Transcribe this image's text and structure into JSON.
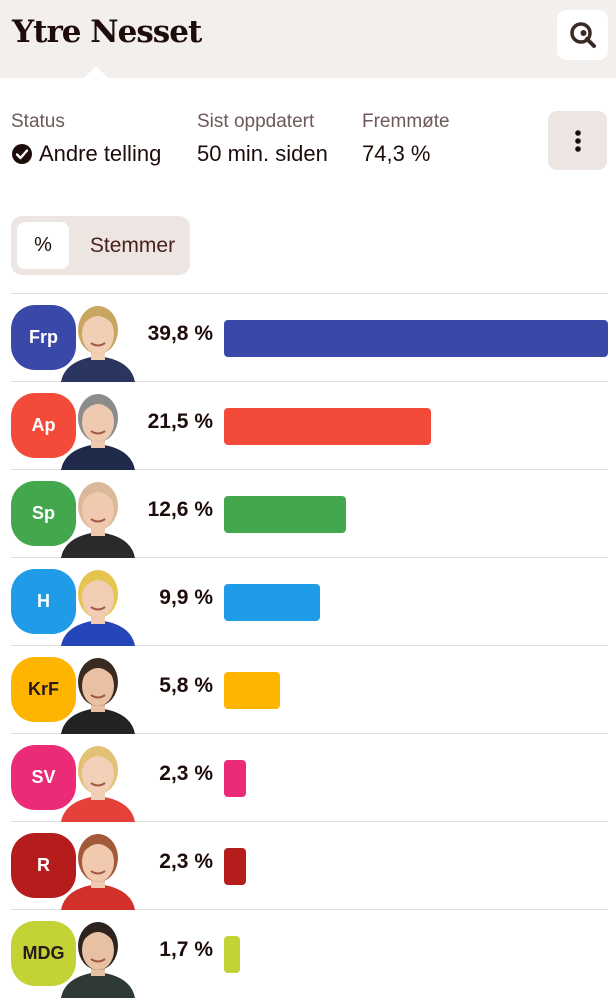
{
  "header": {
    "title": "Ytre Nesset",
    "search_icon": "search-icon"
  },
  "stats": {
    "status_label": "Status",
    "status_value": "Andre telling",
    "updated_label": "Sist oppdatert",
    "updated_value": "50 min. siden",
    "turnout_label": "Fremmøte",
    "turnout_value": "74,3 %"
  },
  "menu": {
    "icon": "more-vertical-icon"
  },
  "toggle": {
    "percent_label": "%",
    "votes_label": "Stemmer"
  },
  "parties": [
    {
      "abbr": "Frp",
      "percent_label": "39,8 %",
      "value": 39.8,
      "color": "#3a49a8",
      "text_color": "#ffffff",
      "skin": "#f1cfb4",
      "hair": "#c8a560",
      "suit": "#2a3560"
    },
    {
      "abbr": "Ap",
      "percent_label": "21,5 %",
      "value": 21.5,
      "color": "#f34a3a",
      "text_color": "#ffffff",
      "skin": "#efcab0",
      "hair": "#8c8c8c",
      "suit": "#1f2a4a"
    },
    {
      "abbr": "Sp",
      "percent_label": "12,6 %",
      "value": 12.6,
      "color": "#43a84d",
      "text_color": "#ffffff",
      "skin": "#f0c9ae",
      "hair": "#d9b99a",
      "suit": "#2a2a2a"
    },
    {
      "abbr": "H",
      "percent_label": "9,9 %",
      "value": 9.9,
      "color": "#1f9be8",
      "text_color": "#ffffff",
      "skin": "#f1cdb3",
      "hair": "#e5c54f",
      "suit": "#2446b8"
    },
    {
      "abbr": "KrF",
      "percent_label": "5,8 %",
      "value": 5.8,
      "color": "#ffb400",
      "text_color": "#2a1a18",
      "skin": "#e9c1a2",
      "hair": "#3a2a22",
      "suit": "#232323"
    },
    {
      "abbr": "SV",
      "percent_label": "2,3 %",
      "value": 2.3,
      "color": "#eb2a78",
      "text_color": "#ffffff",
      "skin": "#f2d0b7",
      "hair": "#e2c074",
      "suit": "#e5413a"
    },
    {
      "abbr": "R",
      "percent_label": "2,3 %",
      "value": 2.3,
      "color": "#b51d1d",
      "text_color": "#ffffff",
      "skin": "#f0c9ae",
      "hair": "#a35a3a",
      "suit": "#d2302a"
    },
    {
      "abbr": "MDG",
      "percent_label": "1,7 %",
      "value": 1.7,
      "color": "#c3d234",
      "text_color": "#2a1a18",
      "skin": "#e8c0a2",
      "hair": "#2e241f",
      "suit": "#2f3a34"
    }
  ]
}
